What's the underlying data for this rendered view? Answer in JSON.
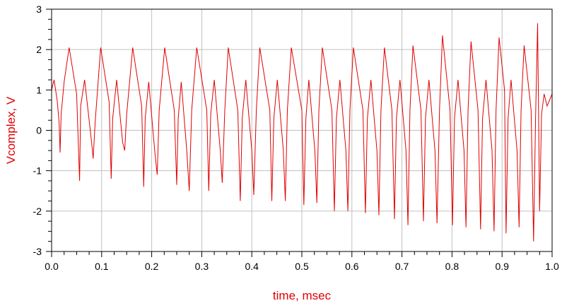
{
  "chart_data": {
    "type": "line",
    "xlabel": "time, msec",
    "ylabel": "Vcomplex, V",
    "xlim": [
      0.0,
      1.0
    ],
    "ylim": [
      -3,
      3
    ],
    "x_ticks": [
      0.0,
      0.1,
      0.2,
      0.3,
      0.4,
      0.5,
      0.6,
      0.7,
      0.8,
      0.9,
      1.0
    ],
    "x_tick_labels": [
      "0.0",
      "0.1",
      "0.2",
      "0.3",
      "0.4",
      "0.5",
      "0.6",
      "0.7",
      "0.8",
      "0.9",
      "1.0"
    ],
    "y_ticks": [
      -3,
      -2,
      -1,
      0,
      1,
      2,
      3
    ],
    "y_tick_labels": [
      "-3",
      "-2",
      "-1",
      "0",
      "1",
      "2",
      "3"
    ],
    "grid": true,
    "legend": "none",
    "colors": {
      "trace": "#e00000",
      "axis_title": "#e00000",
      "grid": "#c0c0c0",
      "frame": "#000000"
    },
    "series": [
      {
        "values": [
          [
            0.0,
            1.0
          ],
          [
            0.005,
            1.25
          ],
          [
            0.011,
            0.75
          ],
          [
            0.015,
            0.2
          ],
          [
            0.017,
            -0.55
          ],
          [
            0.019,
            0.4
          ],
          [
            0.025,
            1.2
          ],
          [
            0.035,
            2.05
          ],
          [
            0.05,
            0.9
          ],
          [
            0.056,
            -1.25
          ],
          [
            0.058,
            0.6
          ],
          [
            0.066,
            1.25
          ],
          [
            0.08,
            -0.3
          ],
          [
            0.083,
            -0.7
          ],
          [
            0.087,
            0.2
          ],
          [
            0.098,
            2.05
          ],
          [
            0.115,
            0.7
          ],
          [
            0.119,
            -1.2
          ],
          [
            0.122,
            0.3
          ],
          [
            0.13,
            1.25
          ],
          [
            0.142,
            -0.3
          ],
          [
            0.146,
            -0.5
          ],
          [
            0.15,
            0.4
          ],
          [
            0.162,
            2.05
          ],
          [
            0.18,
            0.6
          ],
          [
            0.184,
            -1.4
          ],
          [
            0.187,
            0.3
          ],
          [
            0.194,
            1.2
          ],
          [
            0.206,
            -0.5
          ],
          [
            0.211,
            -1.1
          ],
          [
            0.215,
            0.5
          ],
          [
            0.226,
            2.05
          ],
          [
            0.245,
            0.5
          ],
          [
            0.25,
            -1.35
          ],
          [
            0.253,
            0.3
          ],
          [
            0.259,
            1.2
          ],
          [
            0.27,
            -0.5
          ],
          [
            0.275,
            -1.5
          ],
          [
            0.28,
            0.5
          ],
          [
            0.29,
            2.05
          ],
          [
            0.31,
            0.5
          ],
          [
            0.314,
            -1.5
          ],
          [
            0.318,
            0.4
          ],
          [
            0.325,
            1.25
          ],
          [
            0.337,
            -0.5
          ],
          [
            0.341,
            -1.3
          ],
          [
            0.346,
            0.5
          ],
          [
            0.353,
            2.05
          ],
          [
            0.372,
            0.5
          ],
          [
            0.377,
            -1.75
          ],
          [
            0.381,
            0.3
          ],
          [
            0.388,
            1.25
          ],
          [
            0.4,
            -0.5
          ],
          [
            0.404,
            -1.6
          ],
          [
            0.409,
            0.5
          ],
          [
            0.416,
            2.05
          ],
          [
            0.436,
            0.5
          ],
          [
            0.44,
            -1.75
          ],
          [
            0.444,
            0.3
          ],
          [
            0.451,
            1.25
          ],
          [
            0.463,
            -0.5
          ],
          [
            0.467,
            -1.75
          ],
          [
            0.471,
            0.5
          ],
          [
            0.479,
            2.05
          ],
          [
            0.5,
            0.5
          ],
          [
            0.504,
            -1.85
          ],
          [
            0.508,
            0.3
          ],
          [
            0.514,
            1.25
          ],
          [
            0.526,
            -0.5
          ],
          [
            0.53,
            -1.8
          ],
          [
            0.534,
            0.5
          ],
          [
            0.541,
            2.05
          ],
          [
            0.56,
            0.5
          ],
          [
            0.565,
            -2.0
          ],
          [
            0.569,
            0.3
          ],
          [
            0.576,
            1.25
          ],
          [
            0.588,
            -0.5
          ],
          [
            0.592,
            -2.0
          ],
          [
            0.596,
            0.5
          ],
          [
            0.603,
            2.05
          ],
          [
            0.622,
            0.5
          ],
          [
            0.627,
            -2.05
          ],
          [
            0.631,
            0.3
          ],
          [
            0.638,
            1.25
          ],
          [
            0.65,
            -0.5
          ],
          [
            0.654,
            -2.1
          ],
          [
            0.658,
            0.5
          ],
          [
            0.665,
            2.05
          ],
          [
            0.68,
            0.5
          ],
          [
            0.685,
            -2.2
          ],
          [
            0.689,
            0.3
          ],
          [
            0.696,
            1.25
          ],
          [
            0.708,
            -0.5
          ],
          [
            0.712,
            -2.35
          ],
          [
            0.716,
            0.5
          ],
          [
            0.722,
            2.1
          ],
          [
            0.738,
            0.5
          ],
          [
            0.743,
            -2.25
          ],
          [
            0.747,
            0.3
          ],
          [
            0.754,
            1.25
          ],
          [
            0.766,
            -0.5
          ],
          [
            0.77,
            -2.3
          ],
          [
            0.775,
            0.5
          ],
          [
            0.781,
            2.35
          ],
          [
            0.796,
            0.5
          ],
          [
            0.801,
            -2.35
          ],
          [
            0.805,
            0.3
          ],
          [
            0.812,
            1.25
          ],
          [
            0.824,
            -0.5
          ],
          [
            0.828,
            -2.4
          ],
          [
            0.832,
            0.5
          ],
          [
            0.838,
            2.2
          ],
          [
            0.852,
            0.5
          ],
          [
            0.857,
            -2.45
          ],
          [
            0.861,
            0.3
          ],
          [
            0.868,
            1.25
          ],
          [
            0.88,
            -0.5
          ],
          [
            0.884,
            -2.5
          ],
          [
            0.888,
            0.5
          ],
          [
            0.894,
            2.3
          ],
          [
            0.905,
            1.0
          ],
          [
            0.908,
            -2.55
          ],
          [
            0.912,
            0.3
          ],
          [
            0.918,
            1.25
          ],
          [
            0.93,
            -0.5
          ],
          [
            0.934,
            -2.4
          ],
          [
            0.938,
            0.5
          ],
          [
            0.944,
            2.1
          ],
          [
            0.958,
            0.5
          ],
          [
            0.963,
            -2.75
          ],
          [
            0.967,
            0.3
          ],
          [
            0.971,
            2.65
          ],
          [
            0.975,
            -2.0
          ],
          [
            0.979,
            0.4
          ],
          [
            0.984,
            0.9
          ],
          [
            0.99,
            0.6
          ],
          [
            1.0,
            0.9
          ]
        ]
      }
    ]
  }
}
